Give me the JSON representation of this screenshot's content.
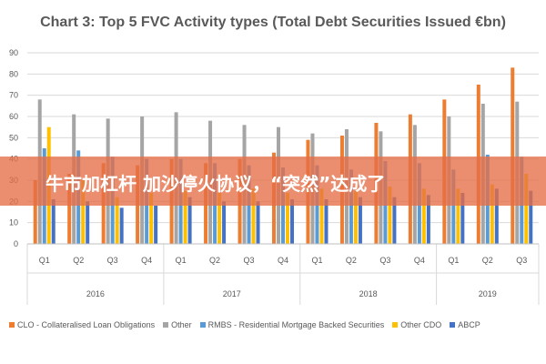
{
  "chart_data": {
    "type": "bar",
    "title": "Chart 3: Top 5 FVC Activity types (Total Debt Securities Issued €bn)",
    "ylim": [
      0,
      90
    ],
    "yticks": [
      0,
      10,
      20,
      30,
      40,
      50,
      60,
      70,
      80,
      90
    ],
    "grid": true,
    "legend_position": "bottom",
    "categories": [
      "Q1",
      "Q2",
      "Q3",
      "Q4",
      "Q1",
      "Q2",
      "Q3",
      "Q4",
      "Q1",
      "Q2",
      "Q3",
      "Q4",
      "Q1",
      "Q2",
      "Q3"
    ],
    "year_groups": [
      {
        "label": "2016",
        "count": 4
      },
      {
        "label": "2017",
        "count": 4
      },
      {
        "label": "2018",
        "count": 4
      },
      {
        "label": "2019",
        "count": 3
      }
    ],
    "series": [
      {
        "name": "CLO - Collateralised Loan Obligations",
        "color": "#ED7D31",
        "values": [
          30,
          33,
          38,
          37,
          40,
          38,
          40,
          43,
          49,
          51,
          57,
          61,
          68,
          75,
          83
        ]
      },
      {
        "name": "Other",
        "color": "#A5A5A5",
        "values": [
          68,
          61,
          59,
          60,
          62,
          58,
          56,
          55,
          52,
          54,
          53,
          56,
          60,
          66,
          67
        ]
      },
      {
        "name": "RMBS - Residential Mortgage Backed Securities",
        "color": "#5B9BD5",
        "values": [
          45,
          44,
          41,
          40,
          40,
          38,
          37,
          36,
          37,
          35,
          39,
          38,
          35,
          42,
          41
        ]
      },
      {
        "name": "Other CDO",
        "color": "#FFC000",
        "values": [
          55,
          30,
          22,
          24,
          25,
          24,
          26,
          24,
          26,
          25,
          27,
          26,
          26,
          28,
          33
        ]
      },
      {
        "name": "ABCP",
        "color": "#4472C4",
        "values": [
          21,
          20,
          17,
          18,
          22,
          20,
          20,
          21,
          21,
          22,
          22,
          23,
          24,
          26,
          25
        ]
      }
    ]
  },
  "banner": {
    "text": "牛市加杠杆 加沙停火协议，“突然”达成了"
  }
}
